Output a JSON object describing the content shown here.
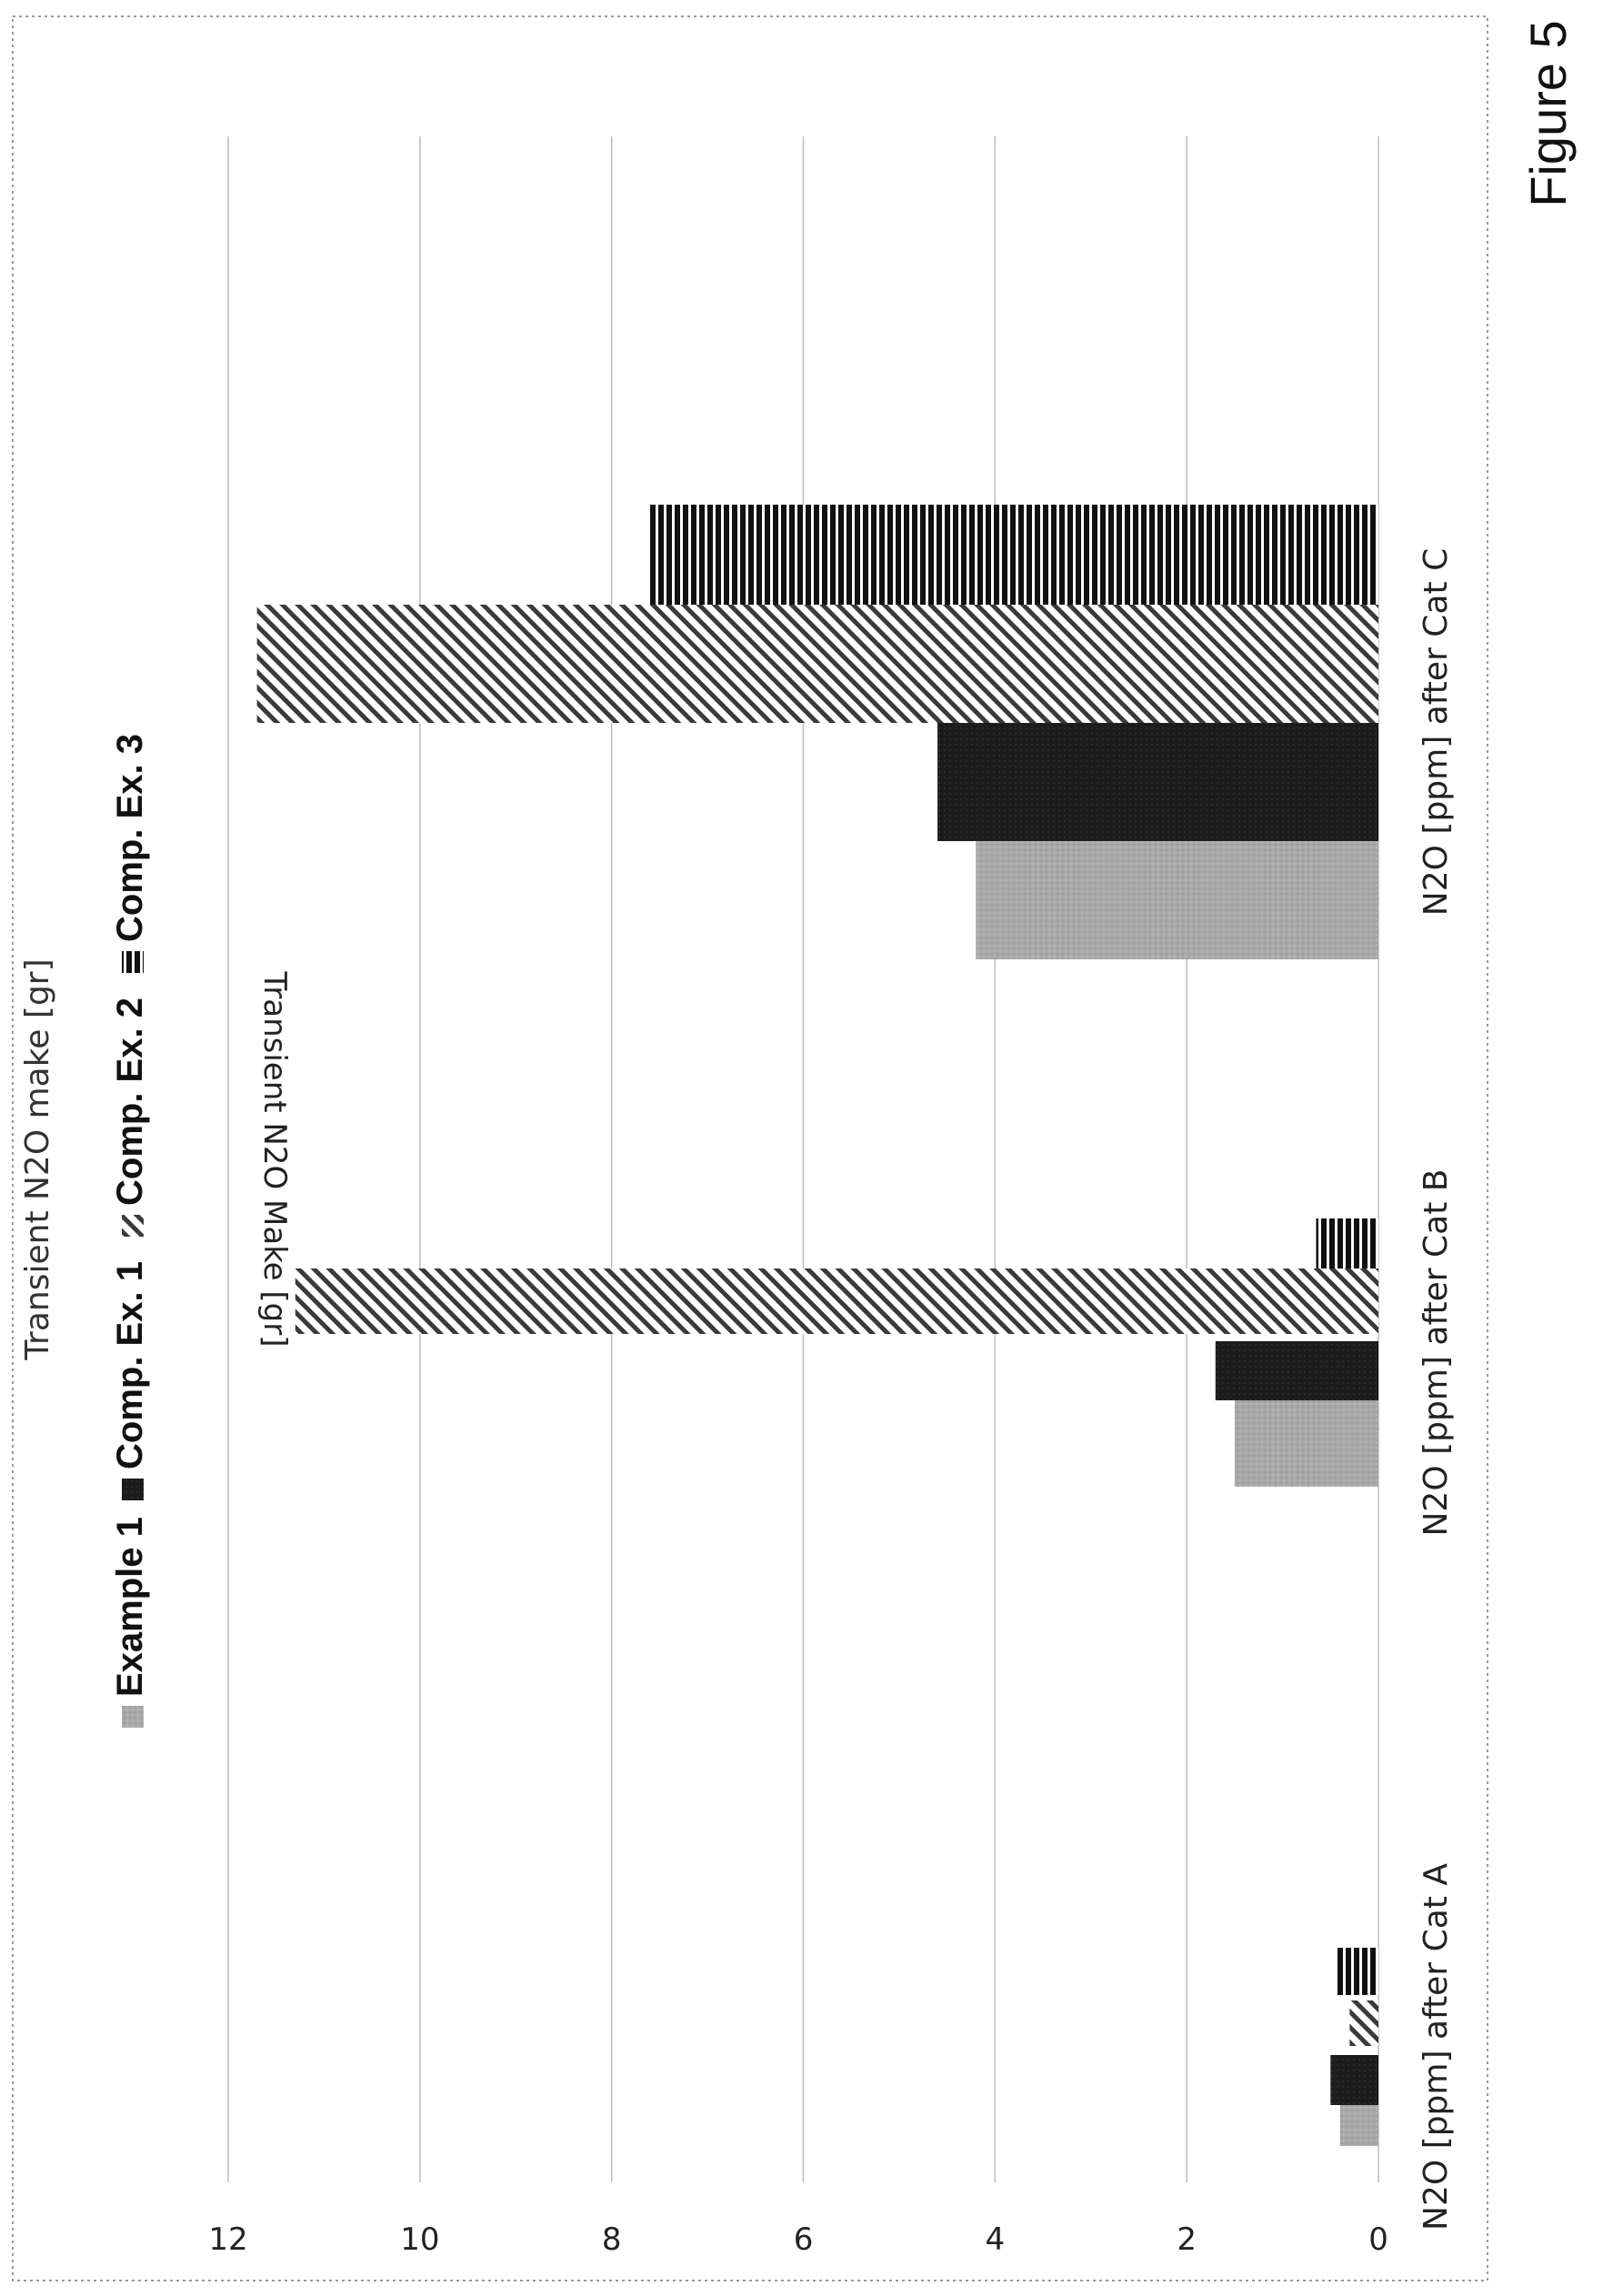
{
  "figure_label": "Figure 5",
  "chart_data": {
    "type": "bar",
    "title": "Transient N2O make [gr]",
    "ylabel": "Transient N2O Make [gr]",
    "xlabel": "",
    "ylim": [
      0,
      12
    ],
    "yticks": [
      "0",
      "2",
      "4",
      "6",
      "8",
      "10",
      "12"
    ],
    "grid": true,
    "legend_position": "top",
    "categories": [
      "N2O [ppm] after Cat A",
      "N2O [ppm] after Cat B",
      "N2O [ppm] after Cat C"
    ],
    "series": [
      {
        "name": "Example 1",
        "pattern": "light-gray-solid",
        "color": "#a6a6a6",
        "values": [
          0.4,
          1.5,
          4.2
        ]
      },
      {
        "name": "Comp. Ex. 1",
        "pattern": "black-solid",
        "color": "#1a1a1a",
        "values": [
          0.5,
          1.7,
          4.6
        ]
      },
      {
        "name": "Comp. Ex. 2",
        "pattern": "diagonal-hatch",
        "color": "#333333",
        "values": [
          0.3,
          11.3,
          11.7
        ]
      },
      {
        "name": "Comp. Ex. 3",
        "pattern": "dense-stripes",
        "color": "#111111",
        "values": [
          0.45,
          0.65,
          7.6
        ]
      }
    ]
  }
}
